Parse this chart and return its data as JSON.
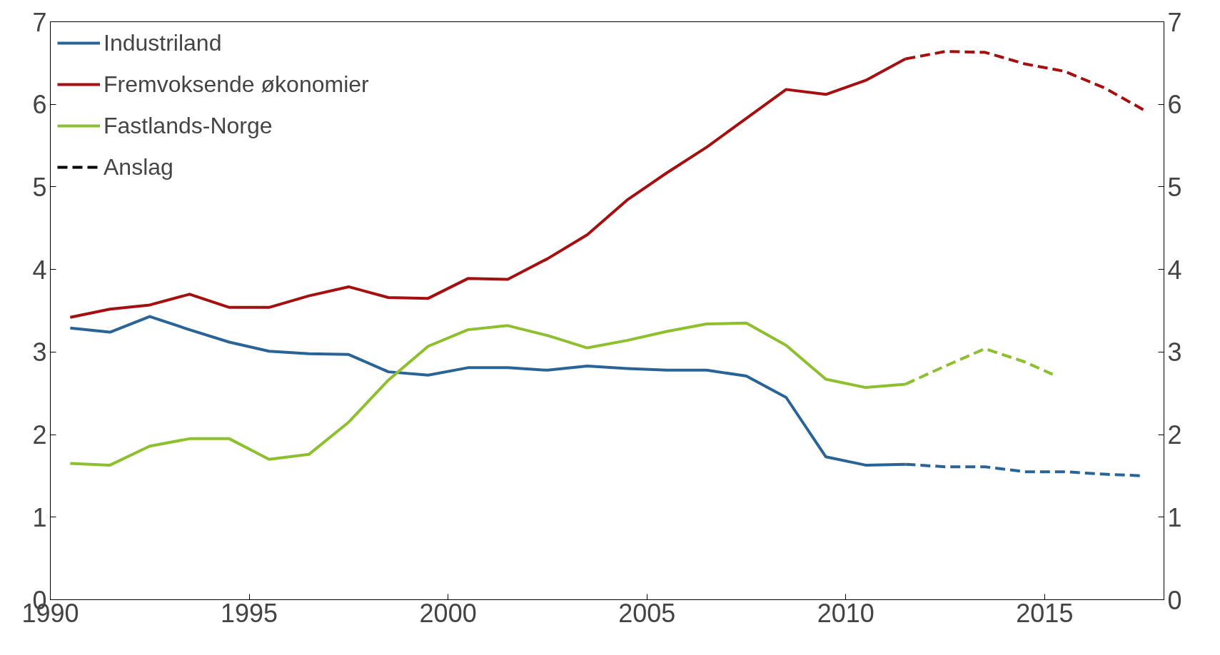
{
  "chart_data": {
    "type": "line",
    "xlim": [
      1990,
      2018
    ],
    "xticks": [
      1990,
      1995,
      2000,
      2005,
      2010,
      2015
    ],
    "ylim": [
      0,
      7
    ],
    "yticks": [
      0,
      1,
      2,
      3,
      4,
      5,
      6,
      7
    ],
    "y2lim": [
      0,
      7
    ],
    "y2ticks": [
      0,
      1,
      2,
      3,
      4,
      5,
      6,
      7
    ],
    "grid": false,
    "legend": "top left",
    "marker": "none",
    "series": [
      {
        "name": "Industriland",
        "color": "#2a6496",
        "line_style": "solid",
        "x": [
          1990.5,
          1991.5,
          1992.5,
          1993.5,
          1994.5,
          1995.5,
          1996.5,
          1997.5,
          1998.5,
          1999.5,
          2000.5,
          2001.5,
          2002.5,
          2003.5,
          2004.5,
          2005.5,
          2006.5,
          2007.5,
          2008.5,
          2009.5,
          2010.5,
          2011.5
        ],
        "values": [
          3.29,
          3.24,
          3.43,
          3.27,
          3.12,
          3.01,
          2.98,
          2.97,
          2.76,
          2.72,
          2.81,
          2.81,
          2.78,
          2.83,
          2.8,
          2.78,
          2.78,
          2.71,
          2.45,
          1.73,
          1.63,
          1.64
        ]
      },
      {
        "name": "Fremvoksende økonomier",
        "color": "#a50f0f",
        "line_style": "solid",
        "x": [
          1990.5,
          1991.5,
          1992.5,
          1993.5,
          1994.5,
          1995.5,
          1996.5,
          1997.5,
          1998.5,
          1999.5,
          2000.5,
          2001.5,
          2002.5,
          2003.5,
          2004.5,
          2005.5,
          2006.5,
          2007.5,
          2008.5,
          2009.5,
          2010.5,
          2011.5
        ],
        "values": [
          3.42,
          3.52,
          3.57,
          3.7,
          3.54,
          3.54,
          3.68,
          3.79,
          3.66,
          3.65,
          3.89,
          3.88,
          4.13,
          4.42,
          4.84,
          5.17,
          5.48,
          5.83,
          6.18,
          6.12,
          6.29,
          6.55
        ]
      },
      {
        "name": "Fastlands-Norge",
        "color": "#8dbf2e",
        "line_style": "solid",
        "x": [
          1990.5,
          1991.5,
          1992.5,
          1993.5,
          1994.5,
          1995.5,
          1996.5,
          1997.5,
          1998.5,
          1999.5,
          2000.5,
          2001.5,
          2002.5,
          2003.5,
          2004.5,
          2005.5,
          2006.5,
          2007.5,
          2008.5,
          2009.5,
          2010.5,
          2011.5
        ],
        "values": [
          1.65,
          1.63,
          1.86,
          1.95,
          1.95,
          1.7,
          1.76,
          2.15,
          2.66,
          3.07,
          3.27,
          3.32,
          3.2,
          3.05,
          3.14,
          3.25,
          3.34,
          3.35,
          3.08,
          2.67,
          2.57,
          2.61
        ]
      },
      {
        "name": "Anslag",
        "color": "#000000",
        "line_style": "dashed"
      },
      {
        "color": "#2a6496",
        "line_style": "dashed",
        "x": [
          2011.5,
          2012.5,
          2013.5,
          2014.5,
          2015.5,
          2016.5,
          2017.5
        ],
        "values": [
          1.64,
          1.61,
          1.61,
          1.55,
          1.55,
          1.52,
          1.5
        ]
      },
      {
        "color": "#a50f0f",
        "line_style": "dashed",
        "x": [
          2011.5,
          2012.5,
          2013.5,
          2014.5,
          2015.5,
          2016.5,
          2017.5
        ],
        "values": [
          6.55,
          6.64,
          6.63,
          6.49,
          6.4,
          6.2,
          5.93
        ]
      },
      {
        "color": "#8dbf2e",
        "line_style": "dashed",
        "x": [
          2011.5,
          2012.5,
          2013.5,
          2014.5,
          2015.2
        ],
        "values": [
          2.61,
          2.83,
          3.04,
          2.88,
          2.73
        ]
      }
    ]
  }
}
